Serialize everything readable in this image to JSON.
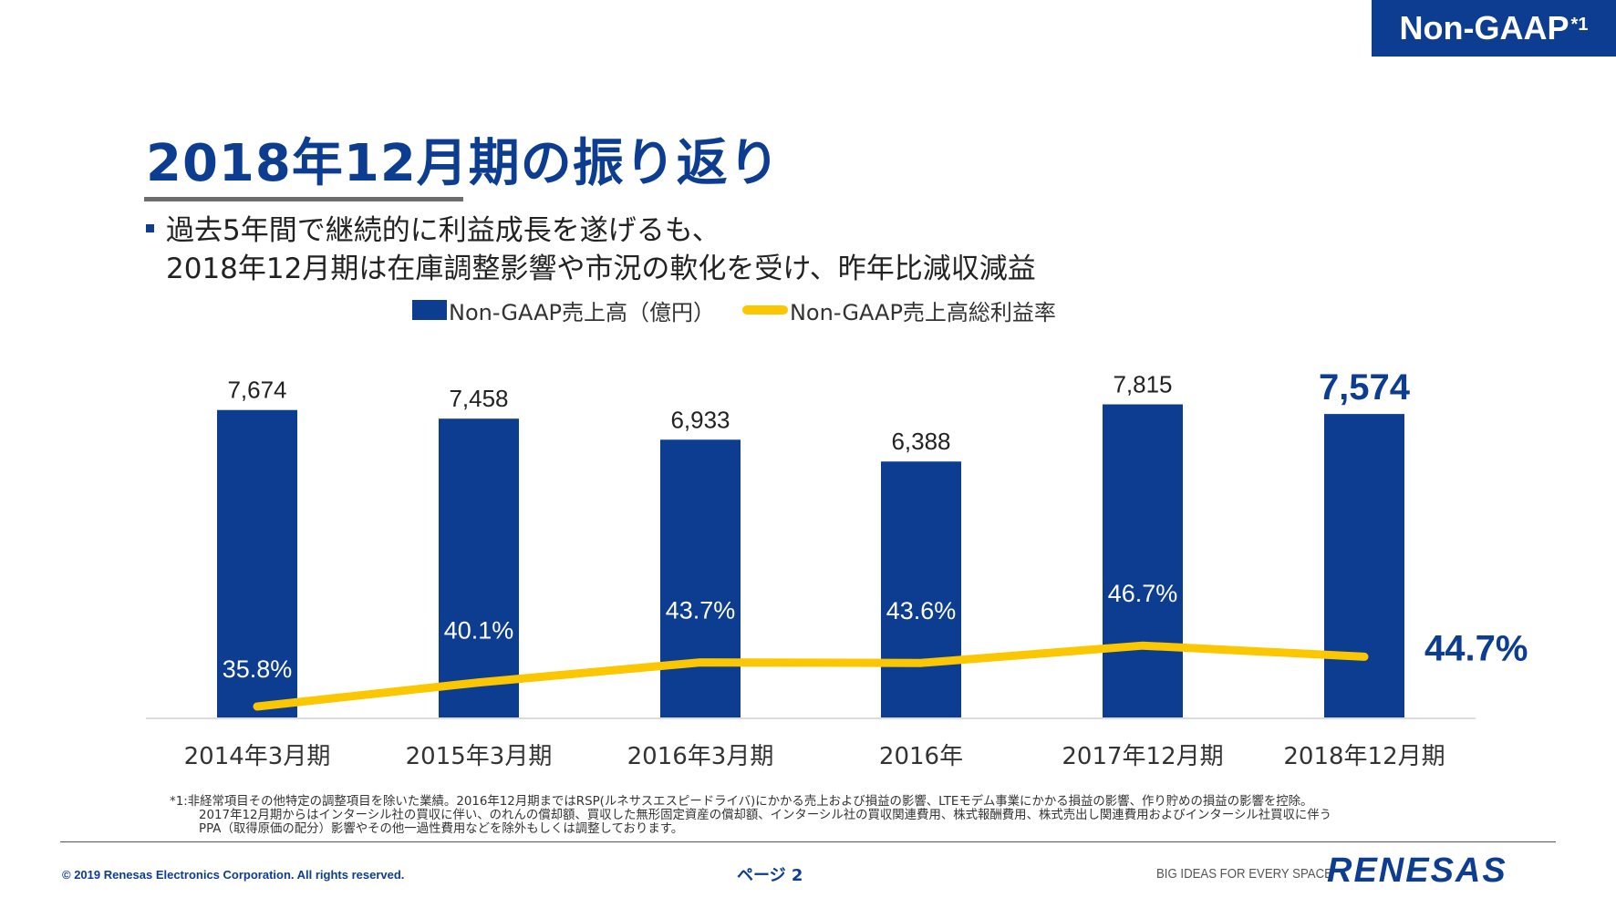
{
  "badge": {
    "text": "Non-GAAP",
    "superscript": "*1"
  },
  "title": "2018年12月期の振り返り",
  "bullet": {
    "line1": "過去5年間で継続的に利益成長を遂げるも、",
    "line2": "2018年12月期は在庫調整影響や市況の軟化を受け、昨年比減収減益"
  },
  "colors": {
    "brand": "#0d3d91",
    "line": "#fac700",
    "text": "#222222"
  },
  "chart_data": {
    "type": "bar",
    "categories": [
      "2014年3月期",
      "2015年3月期",
      "2016年3月期",
      "2016年",
      "2017年12月期",
      "2018年12月期"
    ],
    "series": [
      {
        "name": "Non-GAAP売上高（億円）",
        "type": "bar",
        "values": [
          7674,
          7458,
          6933,
          6388,
          7815,
          7574
        ],
        "labels": [
          "7,674",
          "7,458",
          "6,933",
          "6,388",
          "7,815",
          "7,574"
        ]
      },
      {
        "name": "Non-GAAP売上高総利益率",
        "type": "line",
        "values": [
          35.8,
          40.1,
          43.7,
          43.6,
          46.7,
          44.7
        ],
        "labels": [
          "35.8%",
          "40.1%",
          "43.7%",
          "43.6%",
          "46.7%",
          "44.7%"
        ]
      }
    ],
    "highlight_index": 5,
    "legend_position": "top"
  },
  "footnote": {
    "line1": "*1:非経常項目その他特定の調整項目を除いた業績。2016年12月期まではRSP(ルネサスエスピードライバ)にかかる売上および損益の影響、LTEモデム事業にかかる損益の影響、作り貯めの損益の影響を控除。",
    "line2": "2017年12月期からはインターシル社の買収に伴い、のれんの償却額、買収した無形固定資産の償却額、インターシル社の買収関連費用、株式報酬費用、株式売出し関連費用およびインターシル社買収に伴う",
    "line3": "PPA（取得原価の配分）影響やその他一過性費用などを除外もしくは調整しております。"
  },
  "footer": {
    "copyright": "© 2019 Renesas Electronics Corporation. All rights reserved.",
    "page": "ページ 2",
    "tagline": "BIG IDEAS FOR EVERY SPACE",
    "logo": "RENESAS"
  }
}
